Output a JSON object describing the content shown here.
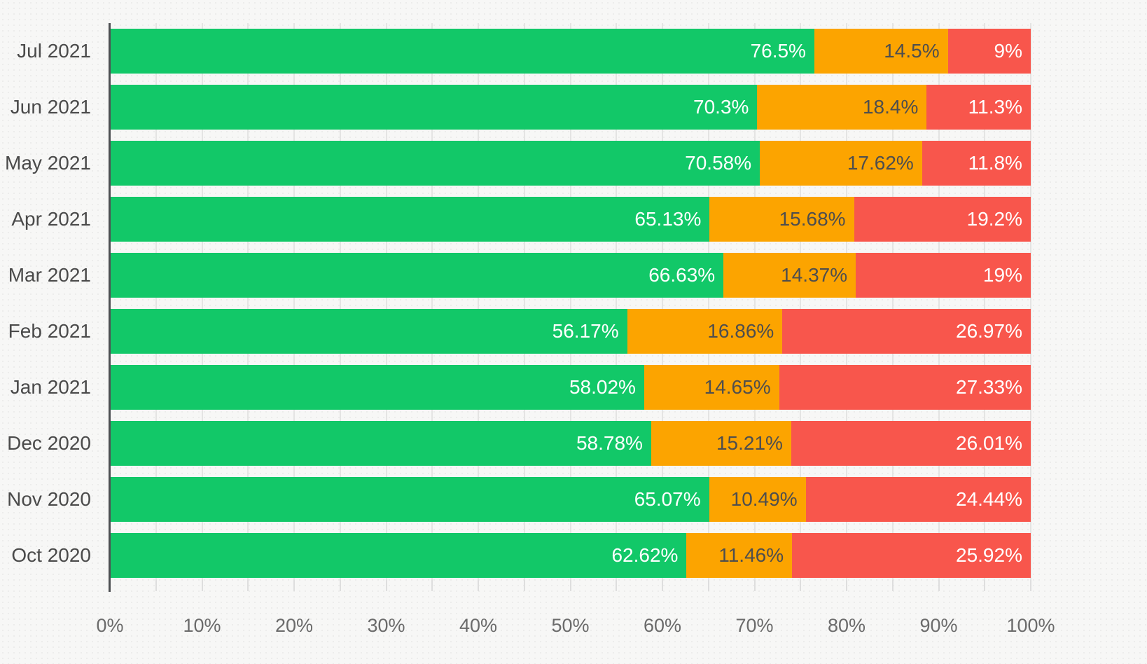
{
  "chart_data": {
    "type": "bar",
    "subtype": "horizontal-stacked-percentage",
    "title": "",
    "xlabel": "",
    "ylabel": "",
    "legend": "none",
    "grid": true,
    "categories": [
      "Jul 2021",
      "Jun 2021",
      "May 2021",
      "Apr 2021",
      "Mar 2021",
      "Feb 2021",
      "Jan 2021",
      "Dec 2020",
      "Nov 2020",
      "Oct 2020"
    ],
    "series": [
      {
        "name": "green-segment",
        "color": "#12c868",
        "label_color": "#ffffff",
        "values": [
          76.5,
          70.3,
          70.58,
          65.13,
          66.63,
          56.17,
          58.02,
          58.78,
          65.07,
          62.62
        ]
      },
      {
        "name": "orange-segment",
        "color": "#fca400",
        "label_color": "#4e4e4e",
        "values": [
          14.5,
          18.4,
          17.62,
          15.68,
          14.37,
          16.86,
          14.65,
          15.21,
          10.49,
          11.46
        ]
      },
      {
        "name": "red-segment",
        "color": "#f8564c",
        "label_color": "#ffffff",
        "values": [
          9,
          11.3,
          11.8,
          19.2,
          19,
          26.97,
          27.33,
          26.01,
          24.44,
          25.92
        ]
      }
    ],
    "value_labels": [
      [
        "76.5%",
        "14.5%",
        "9%"
      ],
      [
        "70.3%",
        "18.4%",
        "11.3%"
      ],
      [
        "70.58%",
        "17.62%",
        "11.8%"
      ],
      [
        "65.13%",
        "15.68%",
        "19.2%"
      ],
      [
        "66.63%",
        "14.37%",
        "19%"
      ],
      [
        "56.17%",
        "16.86%",
        "26.97%"
      ],
      [
        "58.02%",
        "14.65%",
        "27.33%"
      ],
      [
        "58.78%",
        "15.21%",
        "26.01%"
      ],
      [
        "65.07%",
        "10.49%",
        "24.44%"
      ],
      [
        "62.62%",
        "11.46%",
        "25.92%"
      ]
    ],
    "x_axis": {
      "min": 0,
      "max": 100,
      "major_step": 10,
      "minor_step": 5,
      "tick_labels": [
        "0%",
        "10%",
        "20%",
        "30%",
        "40%",
        "50%",
        "60%",
        "70%",
        "80%",
        "90%",
        "100%"
      ]
    }
  },
  "style_colors": {
    "background": "#f7f7f6",
    "gridline": "#e4e4e3",
    "y_axis_line": "#4d4f52",
    "category_label": "#4a4a4a",
    "axis_label": "#6b6b6b"
  }
}
